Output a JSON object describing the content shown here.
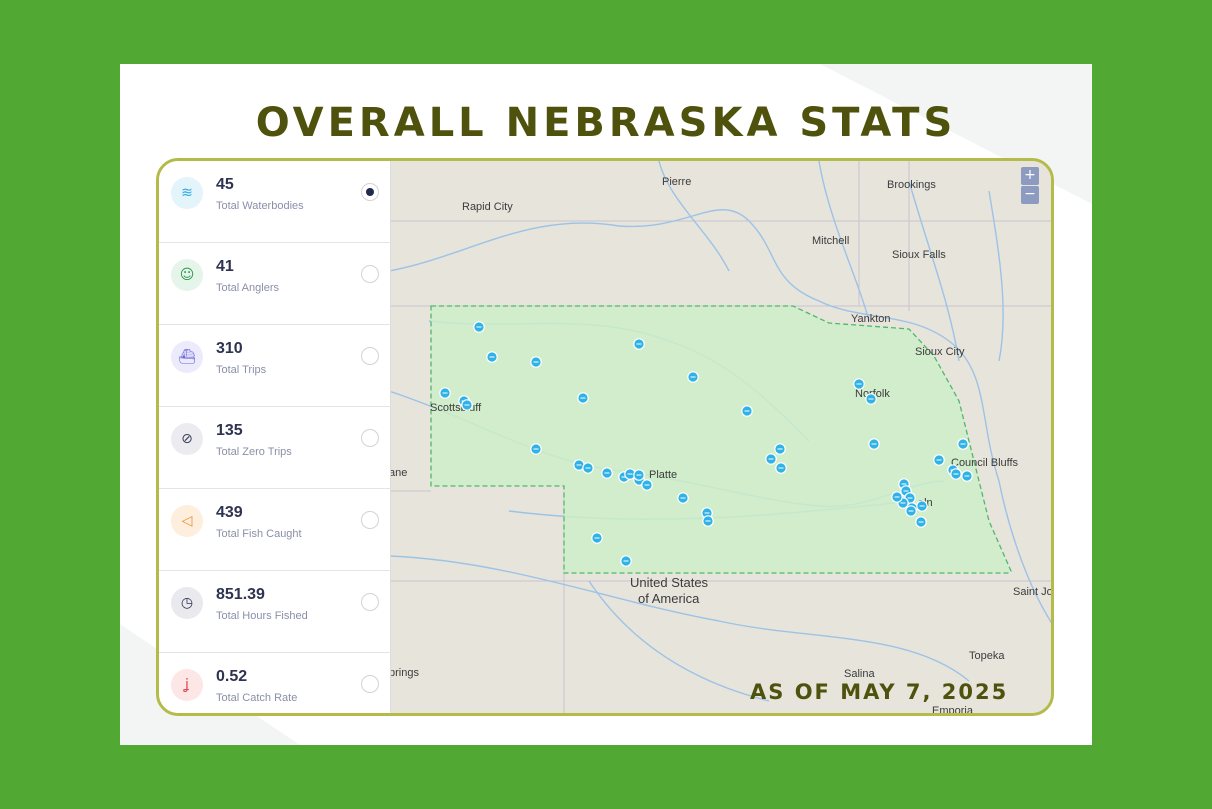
{
  "title": "OVERALL NEBRASKA STATS",
  "as_of": "AS OF MAY 7, 2025",
  "colors": {
    "background": "#51a832",
    "title": "#4e520c",
    "state_fill": "#cdeec8",
    "marker": "#2fb2e8"
  },
  "stats": [
    {
      "value": "45",
      "label": "Total Waterbodies",
      "icon": "waves-icon",
      "selected": true
    },
    {
      "value": "41",
      "label": "Total Anglers",
      "icon": "angler-icon",
      "selected": false
    },
    {
      "value": "310",
      "label": "Total Trips",
      "icon": "boat-icon",
      "selected": false
    },
    {
      "value": "135",
      "label": "Total Zero Trips",
      "icon": "zero-fish-icon",
      "selected": false
    },
    {
      "value": "439",
      "label": "Total Fish Caught",
      "icon": "fish-icon",
      "selected": false
    },
    {
      "value": "851.39",
      "label": "Total Hours Fished",
      "icon": "clock-icon",
      "selected": false
    },
    {
      "value": "0.52",
      "label": "Total Catch Rate",
      "icon": "hook-icon",
      "selected": false
    }
  ],
  "map": {
    "zoom_in": "+",
    "zoom_out": "−",
    "places": [
      "Pierre",
      "Brookings",
      "Rapid City",
      "Mitchell",
      "Sioux Falls",
      "Yankton",
      "Sioux City",
      "Norfolk",
      "Scottsbluff",
      "Platte",
      "Council Bluffs",
      "United States",
      "of America",
      "Saint Jos",
      "Topeka",
      "Salina",
      "Emporia",
      "ane",
      "prings",
      "oln"
    ]
  }
}
